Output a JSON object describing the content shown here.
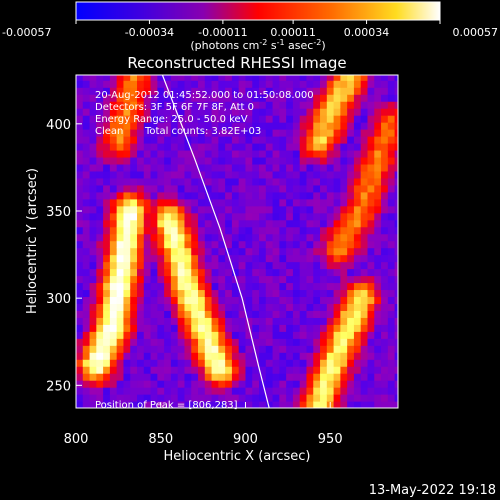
{
  "colorbar": {
    "ticks": [
      "-0.00057",
      "-0.00034",
      "-0.00011",
      "0.00011",
      "0.00034",
      "0.00057"
    ],
    "tick_values": [
      -0.00057,
      -0.00034,
      -0.00011,
      0.00011,
      0.00034,
      0.00057
    ],
    "unit_main": "(photons cm",
    "unit_exp1": "-2",
    "unit_mid": " s",
    "unit_exp2": "-1",
    "unit_end": " asec",
    "unit_exp3": "-2",
    "unit_close": ")"
  },
  "chart_data": {
    "type": "heatmap",
    "title": "Reconstructed RHESSI Image",
    "xlabel": "Heliocentric X (arcsec)",
    "ylabel": "Heliocentric Y (arcsec)",
    "xlim": [
      800,
      990
    ],
    "ylim": [
      237,
      428
    ],
    "x_ticks": [
      "800",
      "850",
      "900",
      "950"
    ],
    "x_tick_values": [
      800,
      850,
      900,
      950
    ],
    "y_ticks": [
      "250",
      "300",
      "350",
      "400"
    ],
    "y_tick_values": [
      250,
      300,
      350,
      400
    ],
    "colormap": [
      "#0a00ff",
      "#5a00e6",
      "#9a00b4",
      "#ff0000",
      "#ff7800",
      "#ffff60",
      "#ffffff"
    ],
    "annotations": [
      "20-Aug-2012 01:45:52.000 to 01:50:08.000",
      "Detectors: 3F 5F 6F 7F 8F, Att 0",
      "Energy Range: 25.0 - 50.0 keV",
      "Clean",
      "Total counts: 3.82E+03"
    ],
    "peak_label": "Position of Peak = [806,283]",
    "peak": [
      806,
      283
    ],
    "limb_curve": [
      [
        851,
        428
      ],
      [
        870,
        380
      ],
      [
        885,
        340
      ],
      [
        898,
        300
      ],
      [
        908,
        260
      ],
      [
        914,
        237
      ]
    ],
    "bright_ridges": [
      {
        "x": [
          812,
          822,
          832
        ],
        "y": [
          262,
          285,
          350
        ],
        "value": 0.00057
      },
      {
        "x": [
          855,
          868,
          885
        ],
        "y": [
          345,
          300,
          260
        ],
        "value": 0.0005
      },
      {
        "x": [
          942,
          955,
          968
        ],
        "y": [
          237,
          270,
          300
        ],
        "value": 0.00045
      },
      {
        "x": [
          943,
          952,
          962
        ],
        "y": [
          390,
          410,
          428
        ],
        "value": 0.0004
      },
      {
        "x": [
          955,
          968,
          985
        ],
        "y": [
          328,
          350,
          400
        ],
        "value": 0.0003
      },
      {
        "x": [
          825,
          835
        ],
        "y": [
          390,
          428
        ],
        "value": 0.0003
      }
    ]
  },
  "footer": {
    "timestamp": "13-May-2022 19:18"
  }
}
